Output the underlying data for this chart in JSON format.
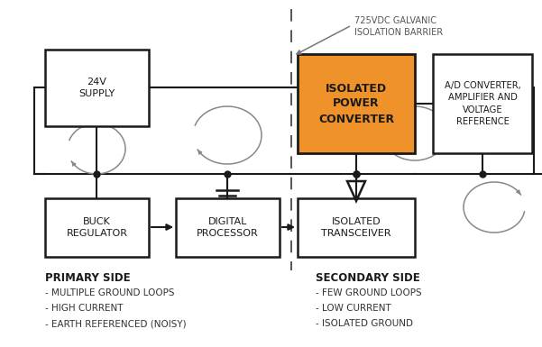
{
  "bg_color": "#ffffff",
  "box_edge": "#1a1a1a",
  "orange_fill": "#f0922a",
  "line_color": "#1a1a1a",
  "dashed_line_color": "#555555",
  "arc_color": "#888888",
  "text_color": "#333333",
  "label_color": "#555555",
  "title_annotation": "725VDC GALVANIC\nISOLATION BARRIER",
  "primary_side_label": "PRIMARY SIDE",
  "secondary_side_label": "SECONDARY SIDE",
  "primary_bullets": [
    "- MULTIPLE GROUND LOOPS",
    "- HIGH CURRENT",
    "- EARTH REFERENCED (NOISY)"
  ],
  "secondary_bullets": [
    "- FEW GROUND LOOPS",
    "- LOW CURRENT",
    "- ISOLATED GROUND"
  ],
  "figsize": [
    6.01,
    3.85
  ],
  "dpi": 100
}
